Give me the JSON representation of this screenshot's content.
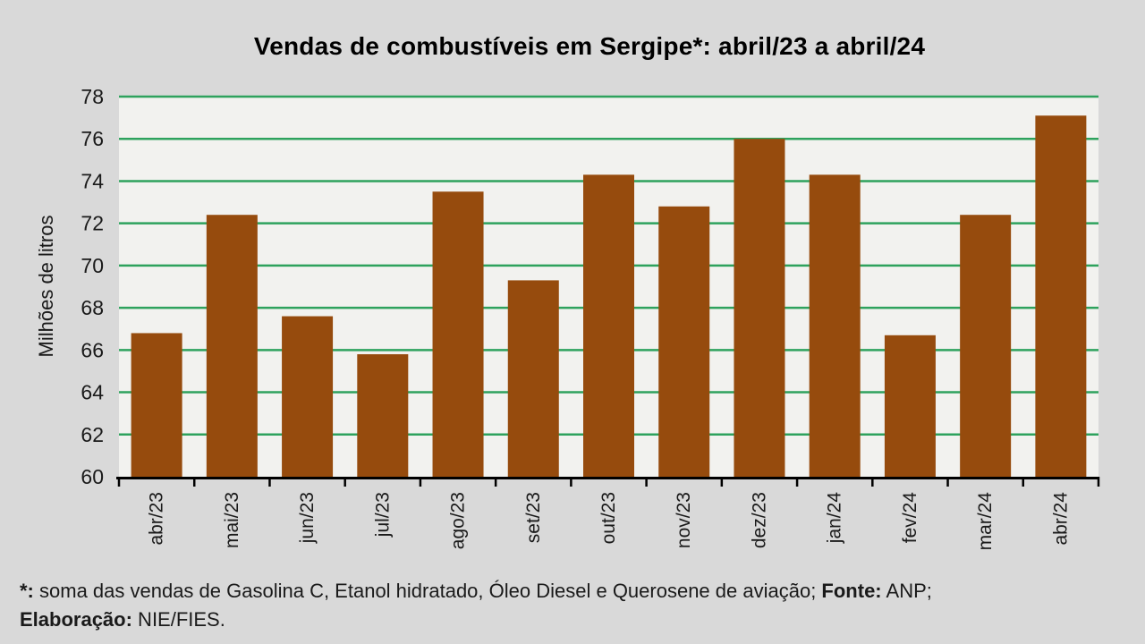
{
  "chart_data": {
    "type": "bar",
    "title": "Vendas de combustíveis em Sergipe*: abril/23 a abril/24",
    "categories": [
      "abr/23",
      "mai/23",
      "jun/23",
      "jul/23",
      "ago/23",
      "set/23",
      "out/23",
      "nov/23",
      "dez/23",
      "jan/24",
      "fev/24",
      "mar/24",
      "abr/24"
    ],
    "values": [
      66.8,
      72.4,
      67.6,
      65.8,
      73.5,
      69.3,
      74.3,
      72.8,
      76.0,
      74.3,
      66.7,
      72.4,
      77.1
    ],
    "xlabel": "",
    "ylabel": "Milhões de litros",
    "ylim": [
      60,
      78
    ],
    "yticks": [
      60,
      62,
      64,
      66,
      68,
      70,
      72,
      74,
      76,
      78
    ],
    "grid": true,
    "legend": "none",
    "colors": {
      "bar": "#964B0D",
      "grid": "#2EA25D",
      "plot_background": "#F2F2EF",
      "page_background": "#D9D9D9",
      "axis": "#000000",
      "text": "#1A1A1A"
    }
  },
  "footnote": {
    "lines": [
      {
        "segments": [
          {
            "text": "*:",
            "bold": true
          },
          {
            "text": " soma das vendas de Gasolina C, Etanol hidratado, Óleo Diesel e Querosene de aviação; ",
            "bold": false
          },
          {
            "text": "Fonte:",
            "bold": true
          },
          {
            "text": " ANP;",
            "bold": false
          }
        ]
      },
      {
        "segments": [
          {
            "text": "Elaboração:",
            "bold": true
          },
          {
            "text": " NIE/FIES.",
            "bold": false
          }
        ]
      }
    ]
  }
}
